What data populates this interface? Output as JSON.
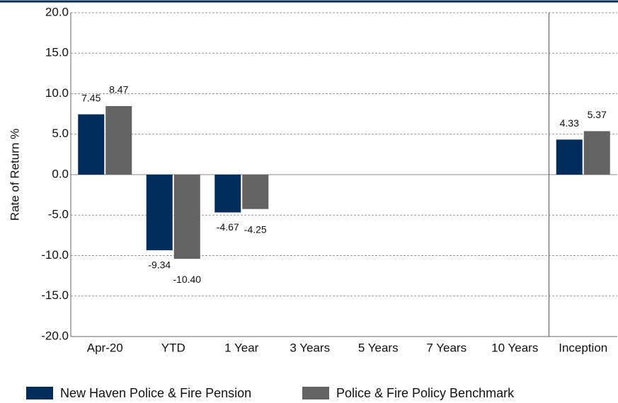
{
  "chart_data": {
    "type": "bar",
    "y_label": "Rate of Return %",
    "categories": [
      "Apr-20",
      "YTD",
      "1 Year",
      "3 Years",
      "5 Years",
      "7 Years",
      "10 Years",
      "Inception"
    ],
    "series": [
      {
        "name": "New Haven Police & Fire Pension",
        "color": "#002d5c",
        "values": [
          7.45,
          -9.34,
          -4.67,
          null,
          null,
          null,
          null,
          4.33
        ],
        "value_labels": [
          "7.45",
          "-9.34",
          "-4.67",
          null,
          null,
          null,
          null,
          "4.33"
        ]
      },
      {
        "name": "Police & Fire Policy Benchmark",
        "color": "#636363",
        "values": [
          8.47,
          -10.4,
          -4.25,
          null,
          null,
          null,
          null,
          5.37
        ],
        "value_labels": [
          "8.47",
          "-10.40",
          "-4.25",
          null,
          null,
          null,
          null,
          "5.37"
        ]
      }
    ],
    "ylim": [
      -20,
      20
    ],
    "yticks": [
      {
        "value": -20,
        "label": "-20.0"
      },
      {
        "value": -15,
        "label": "-15.0"
      },
      {
        "value": -10,
        "label": "-10.0"
      },
      {
        "value": -5,
        "label": "-5.0"
      },
      {
        "value": 0,
        "label": "0.0"
      },
      {
        "value": 5,
        "label": "5.0"
      },
      {
        "value": 10,
        "label": "10.0"
      },
      {
        "value": 15,
        "label": "15.0"
      },
      {
        "value": 20,
        "label": "20.0"
      }
    ],
    "grid": true
  }
}
